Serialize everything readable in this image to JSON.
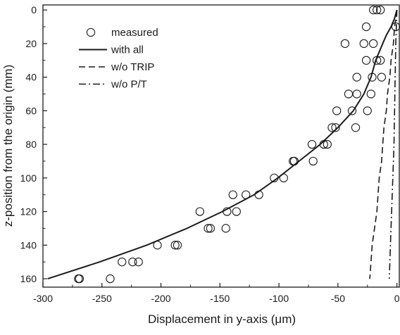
{
  "chart_data": {
    "type": "scatter",
    "xlabel": "Displacement in y-axis (μm)",
    "ylabel": "z-position from the origin (mm)",
    "xlim": [
      -300,
      2
    ],
    "ylim": [
      -3,
      165
    ],
    "y_inverted": true,
    "grid": false,
    "legend_position": "top-left",
    "x_ticks": [
      -300,
      -250,
      -200,
      -150,
      -100,
      -50,
      0
    ],
    "x_tick_labels": [
      "-300",
      "-250",
      "-200",
      "-150",
      "-100",
      "-50",
      "0"
    ],
    "y_ticks": [
      0,
      20,
      40,
      60,
      80,
      100,
      120,
      140,
      160
    ],
    "y_tick_labels": [
      "0",
      "20",
      "40",
      "60",
      "80",
      "100",
      "120",
      "140",
      "160"
    ],
    "series": [
      {
        "name": "measured",
        "style": "open-circle",
        "points": [
          [
            -20,
            0
          ],
          [
            -17,
            0
          ],
          [
            -14,
            0
          ],
          [
            -1,
            10
          ],
          [
            -26,
            10
          ],
          [
            -44,
            20
          ],
          [
            -28,
            20
          ],
          [
            -20,
            20
          ],
          [
            -17,
            30
          ],
          [
            -26,
            30
          ],
          [
            -14,
            30
          ],
          [
            -34,
            40
          ],
          [
            -21,
            40
          ],
          [
            -13,
            40
          ],
          [
            -34,
            50
          ],
          [
            -41,
            50
          ],
          [
            -22,
            50
          ],
          [
            -51,
            60
          ],
          [
            -38,
            60
          ],
          [
            -25,
            60
          ],
          [
            -55,
            70
          ],
          [
            -52,
            70
          ],
          [
            -35,
            70
          ],
          [
            -62,
            80
          ],
          [
            -72,
            80
          ],
          [
            -59,
            80
          ],
          [
            -88,
            90
          ],
          [
            -71,
            90
          ],
          [
            -87,
            90
          ],
          [
            -104,
            100
          ],
          [
            -96,
            100
          ],
          [
            -139,
            110
          ],
          [
            -128,
            110
          ],
          [
            -117,
            110
          ],
          [
            -167,
            120
          ],
          [
            -144,
            120
          ],
          [
            -136,
            120
          ],
          [
            -160,
            130
          ],
          [
            -158,
            130
          ],
          [
            -145,
            130
          ],
          [
            -203,
            140
          ],
          [
            -186,
            140
          ],
          [
            -188,
            140
          ],
          [
            -233,
            150
          ],
          [
            -224,
            150
          ],
          [
            -219,
            150
          ],
          [
            -270,
            160
          ],
          [
            -269,
            160
          ],
          [
            -243,
            160
          ]
        ]
      },
      {
        "name": "with all",
        "style": "solid",
        "points": [
          [
            0,
            0
          ],
          [
            -2,
            5
          ],
          [
            -5,
            10
          ],
          [
            -9,
            15
          ],
          [
            -12,
            20
          ],
          [
            -15,
            25
          ],
          [
            -18,
            30
          ],
          [
            -22,
            40
          ],
          [
            -28,
            50
          ],
          [
            -37,
            60
          ],
          [
            -50,
            70
          ],
          [
            -65,
            80
          ],
          [
            -83,
            90
          ],
          [
            -101,
            100
          ],
          [
            -121,
            110
          ],
          [
            -148,
            120
          ],
          [
            -178,
            130
          ],
          [
            -212,
            140
          ],
          [
            -252,
            150
          ],
          [
            -296,
            160
          ]
        ]
      },
      {
        "name": "w/o TRIP",
        "style": "dashed",
        "points": [
          [
            0,
            0
          ],
          [
            -2,
            10
          ],
          [
            -3,
            20
          ],
          [
            -5,
            30
          ],
          [
            -6,
            40
          ],
          [
            -8,
            50
          ],
          [
            -9,
            60
          ],
          [
            -11,
            70
          ],
          [
            -12,
            80
          ],
          [
            -13,
            90
          ],
          [
            -15,
            100
          ],
          [
            -16,
            110
          ],
          [
            -17,
            120
          ],
          [
            -19,
            130
          ],
          [
            -21,
            140
          ],
          [
            -22,
            150
          ],
          [
            -23,
            160
          ]
        ]
      },
      {
        "name": "w/o P/T",
        "style": "dash-dot",
        "points": [
          [
            0,
            0
          ],
          [
            -1,
            20
          ],
          [
            -1.5,
            40
          ],
          [
            -2,
            60
          ],
          [
            -2.5,
            80
          ],
          [
            -3.5,
            100
          ],
          [
            -4.5,
            120
          ],
          [
            -5.5,
            140
          ],
          [
            -6.5,
            160
          ]
        ]
      }
    ]
  }
}
